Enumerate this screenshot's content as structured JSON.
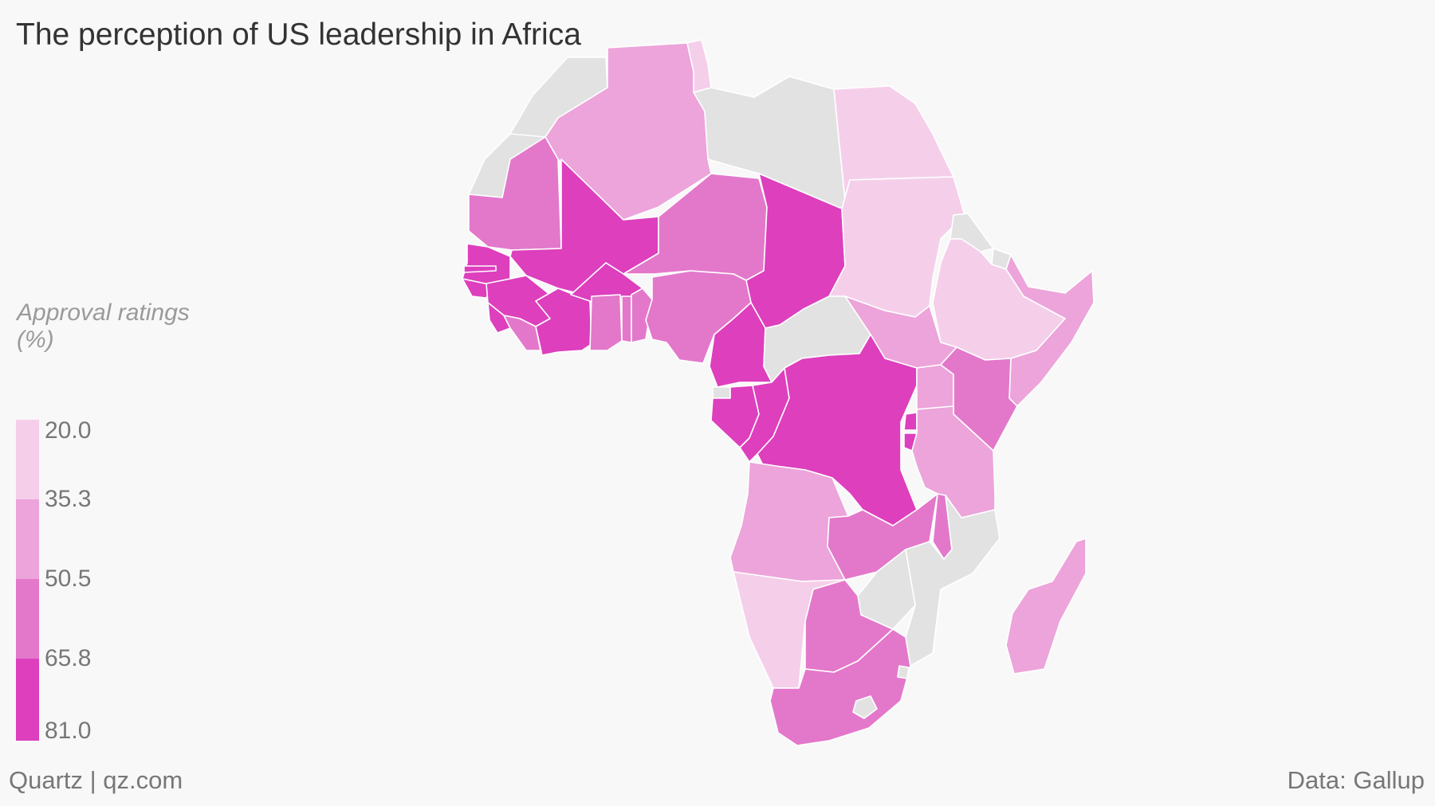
{
  "title": "The perception of US leadership in Africa",
  "legend": {
    "title_line1": "Approval ratings",
    "title_line2": "(%)",
    "ticks": [
      "20.0",
      "35.3",
      "50.5",
      "65.8",
      "81.0"
    ],
    "colors": [
      "#f5cfea",
      "#eca4da",
      "#e378cb",
      "#dd3fbd"
    ]
  },
  "no_data_color": "#e2e2e2",
  "countries": [
    {
      "name": "Morocco",
      "value": null
    },
    {
      "name": "Western Sahara",
      "value": null
    },
    {
      "name": "Algeria",
      "value": 44
    },
    {
      "name": "Tunisia",
      "value": 30
    },
    {
      "name": "Libya",
      "value": null
    },
    {
      "name": "Egypt",
      "value": 28
    },
    {
      "name": "Mauritania",
      "value": 60
    },
    {
      "name": "Mali",
      "value": 76
    },
    {
      "name": "Niger",
      "value": 58
    },
    {
      "name": "Chad",
      "value": 76
    },
    {
      "name": "Sudan",
      "value": 28
    },
    {
      "name": "Eritrea",
      "value": null
    },
    {
      "name": "Djibouti",
      "value": null
    },
    {
      "name": "Ethiopia",
      "value": 30
    },
    {
      "name": "Somalia",
      "value": 40
    },
    {
      "name": "Senegal",
      "value": 78
    },
    {
      "name": "Gambia",
      "value": 76
    },
    {
      "name": "Guinea-Bissau",
      "value": 70
    },
    {
      "name": "Guinea",
      "value": 76
    },
    {
      "name": "Sierra Leone",
      "value": 76
    },
    {
      "name": "Liberia",
      "value": 55
    },
    {
      "name": "Ivory Coast",
      "value": 76
    },
    {
      "name": "Burkina Faso",
      "value": 76
    },
    {
      "name": "Ghana",
      "value": 58
    },
    {
      "name": "Togo",
      "value": 58
    },
    {
      "name": "Benin",
      "value": 62
    },
    {
      "name": "Nigeria",
      "value": 60
    },
    {
      "name": "Cameroon",
      "value": 76
    },
    {
      "name": "Central African Republic",
      "value": null
    },
    {
      "name": "South Sudan",
      "value": 44
    },
    {
      "name": "Equatorial Guinea",
      "value": null
    },
    {
      "name": "Gabon",
      "value": 76
    },
    {
      "name": "Republic of the Congo",
      "value": 76
    },
    {
      "name": "DR Congo",
      "value": 76
    },
    {
      "name": "Uganda",
      "value": 44
    },
    {
      "name": "Kenya",
      "value": 60
    },
    {
      "name": "Rwanda",
      "value": 76
    },
    {
      "name": "Burundi",
      "value": 76
    },
    {
      "name": "Tanzania",
      "value": 44
    },
    {
      "name": "Angola",
      "value": 44
    },
    {
      "name": "Zambia",
      "value": 58
    },
    {
      "name": "Malawi",
      "value": 60
    },
    {
      "name": "Mozambique",
      "value": null
    },
    {
      "name": "Zimbabwe",
      "value": null
    },
    {
      "name": "Namibia",
      "value": 28
    },
    {
      "name": "Botswana",
      "value": 58
    },
    {
      "name": "South Africa",
      "value": 60
    },
    {
      "name": "Lesotho",
      "value": null
    },
    {
      "name": "Swaziland",
      "value": null
    },
    {
      "name": "Madagascar",
      "value": 44
    }
  ],
  "footer_left": "Quartz | qz.com",
  "footer_right": "Data: Gallup"
}
